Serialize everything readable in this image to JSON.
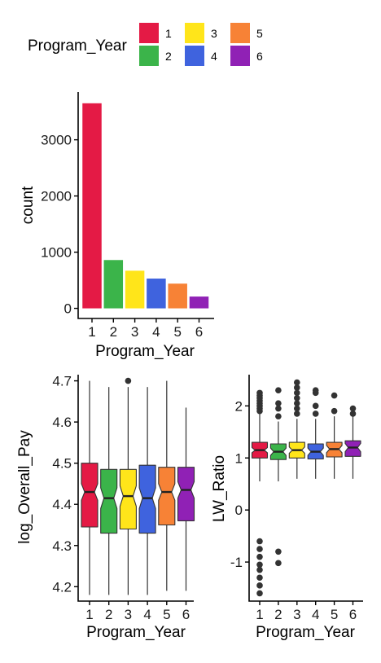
{
  "legend": {
    "title": "Program_Year",
    "entries": [
      {
        "label": "1",
        "color": "#E41A45"
      },
      {
        "label": "2",
        "color": "#3BB44A"
      },
      {
        "label": "3",
        "color": "#FFE51A"
      },
      {
        "label": "4",
        "color": "#3F63DE"
      },
      {
        "label": "5",
        "color": "#F78236"
      },
      {
        "label": "6",
        "color": "#9021B5"
      }
    ]
  },
  "chart_data": [
    {
      "type": "bar",
      "categories": [
        "1",
        "2",
        "3",
        "4",
        "5",
        "6"
      ],
      "values": [
        3650,
        860,
        670,
        530,
        440,
        210
      ],
      "xlabel": "Program_Year",
      "ylabel": "count",
      "yticks": [
        0,
        1000,
        2000,
        3000
      ],
      "ylim": [
        -180,
        3850
      ]
    },
    {
      "type": "box",
      "categories": [
        "1",
        "2",
        "3",
        "4",
        "5",
        "6"
      ],
      "xlabel": "Program_Year",
      "ylabel": "log_Overall_Pay",
      "yticks": [
        4.2,
        4.3,
        4.4,
        4.5,
        4.6,
        4.7
      ],
      "ylim": [
        4.165,
        4.715
      ],
      "boxes": [
        {
          "min": 4.18,
          "q1": 4.345,
          "median": 4.43,
          "q3": 4.5,
          "max": 4.7,
          "notch": [
            4.41,
            4.45
          ],
          "outliers": []
        },
        {
          "min": 4.18,
          "q1": 4.33,
          "median": 4.415,
          "q3": 4.485,
          "max": 4.685,
          "notch": [
            4.39,
            4.44
          ],
          "outliers": []
        },
        {
          "min": 4.18,
          "q1": 4.34,
          "median": 4.42,
          "q3": 4.485,
          "max": 4.685,
          "notch": [
            4.395,
            4.445
          ],
          "outliers": [
            4.7
          ]
        },
        {
          "min": 4.18,
          "q1": 4.33,
          "median": 4.415,
          "q3": 4.495,
          "max": 4.685,
          "notch": [
            4.39,
            4.44
          ],
          "outliers": []
        },
        {
          "min": 4.19,
          "q1": 4.35,
          "median": 4.43,
          "q3": 4.49,
          "max": 4.7,
          "notch": [
            4.41,
            4.45
          ],
          "outliers": []
        },
        {
          "min": 4.19,
          "q1": 4.36,
          "median": 4.435,
          "q3": 4.49,
          "max": 4.635,
          "notch": [
            4.415,
            4.455
          ],
          "outliers": []
        }
      ]
    },
    {
      "type": "box",
      "categories": [
        "1",
        "2",
        "3",
        "4",
        "5",
        "6"
      ],
      "xlabel": "Program_Year",
      "ylabel": "LW_Ratio",
      "yticks": [
        -1,
        0,
        1,
        2
      ],
      "ylim": [
        -1.75,
        2.6
      ],
      "boxes": [
        {
          "min": 0.55,
          "q1": 1.0,
          "median": 1.15,
          "q3": 1.3,
          "max": 1.85,
          "notch": [
            1.1,
            1.2
          ],
          "outliers": [
            1.9,
            1.95,
            2.0,
            2.05,
            2.1,
            2.15,
            2.2,
            2.25,
            -0.6,
            -0.75,
            -0.9,
            -1.05,
            -1.15,
            -1.3,
            -1.45,
            -1.6
          ]
        },
        {
          "min": 0.55,
          "q1": 0.97,
          "median": 1.12,
          "q3": 1.27,
          "max": 1.7,
          "notch": [
            1.05,
            1.19
          ],
          "outliers": [
            1.8,
            1.95,
            2.05,
            2.3,
            -0.8,
            -1.02
          ]
        },
        {
          "min": 0.6,
          "q1": 1.0,
          "median": 1.15,
          "q3": 1.3,
          "max": 1.75,
          "notch": [
            1.09,
            1.21
          ],
          "outliers": [
            1.85,
            1.95,
            2.05,
            2.15,
            2.25,
            2.35,
            2.45
          ]
        },
        {
          "min": 0.6,
          "q1": 0.98,
          "median": 1.12,
          "q3": 1.27,
          "max": 1.75,
          "notch": [
            1.05,
            1.19
          ],
          "outliers": [
            1.85,
            2.0,
            2.25,
            2.3
          ]
        },
        {
          "min": 0.6,
          "q1": 1.02,
          "median": 1.17,
          "q3": 1.3,
          "max": 1.8,
          "notch": [
            1.1,
            1.24
          ],
          "outliers": [
            1.9,
            2.2
          ]
        },
        {
          "min": 0.6,
          "q1": 1.03,
          "median": 1.2,
          "q3": 1.33,
          "max": 1.8,
          "notch": [
            1.12,
            1.28
          ],
          "outliers": [
            1.85,
            1.95
          ]
        }
      ]
    }
  ]
}
